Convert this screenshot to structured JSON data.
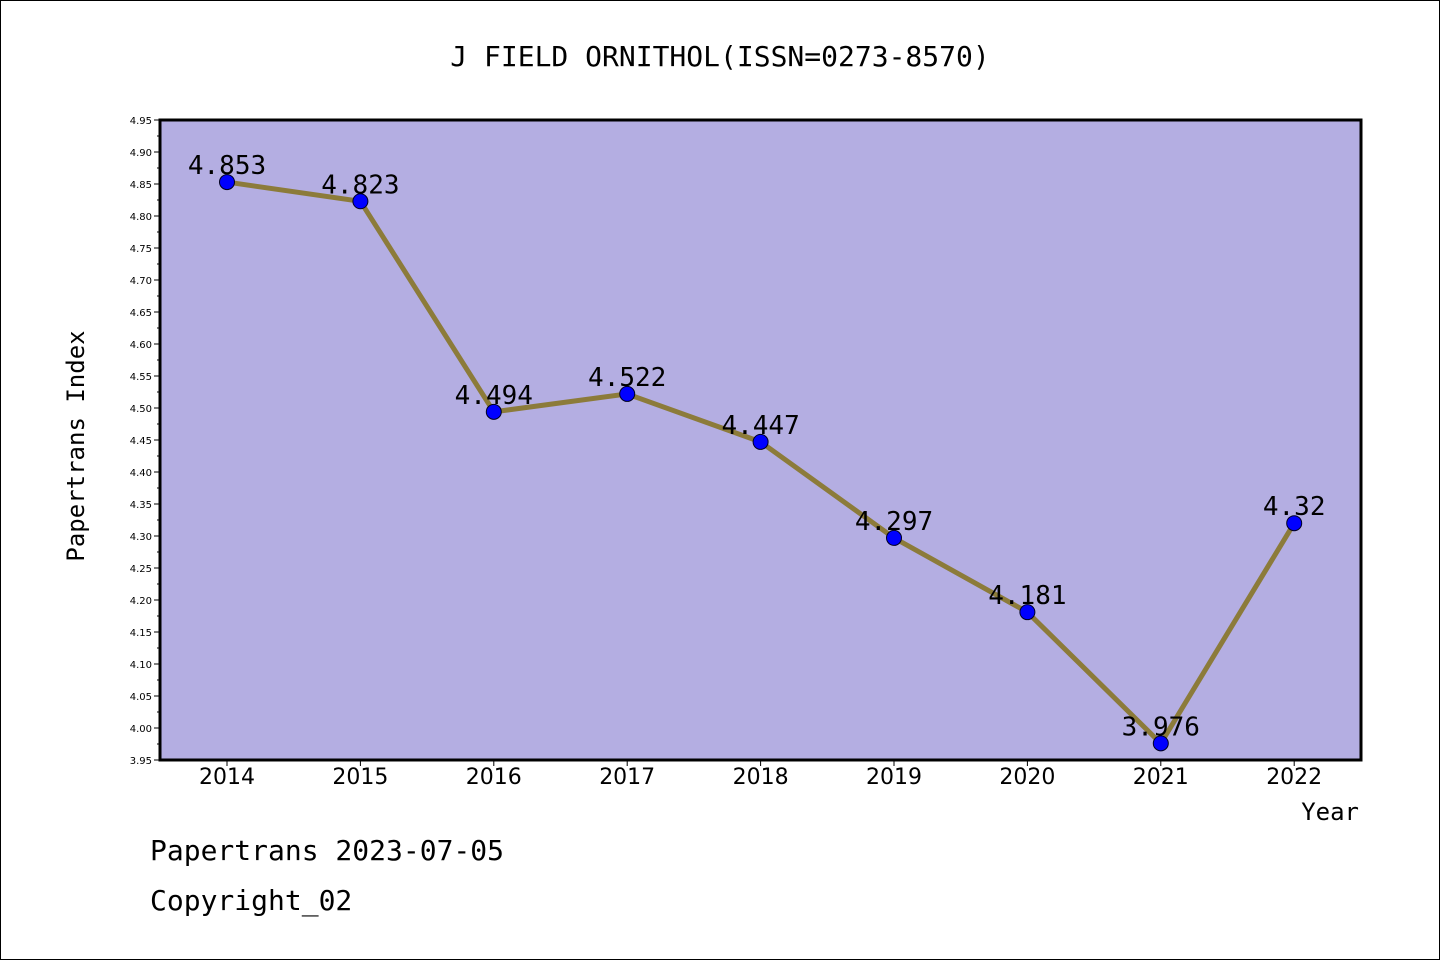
{
  "chart_data": {
    "type": "line",
    "title": "J FIELD ORNITHOL(ISSN=0273-8570)",
    "xlabel": "Year",
    "ylabel": "Papertrans Index",
    "categories": [
      "2014",
      "2015",
      "2016",
      "2017",
      "2018",
      "2019",
      "2020",
      "2021",
      "2022"
    ],
    "values": [
      4.853,
      4.823,
      4.494,
      4.522,
      4.447,
      4.297,
      4.181,
      3.976,
      4.32
    ],
    "data_labels": [
      "4.853",
      "4.823",
      "4.494",
      "4.522",
      "4.447",
      "4.297",
      "4.181",
      "3.976",
      "4.32"
    ],
    "ylim": [
      3.95,
      4.95
    ],
    "yticks": [
      "3.95",
      "4.00",
      "4.05",
      "4.10",
      "4.15",
      "4.20",
      "4.25",
      "4.30",
      "4.35",
      "4.40",
      "4.45",
      "4.50",
      "4.55",
      "4.60",
      "4.65",
      "4.70",
      "4.75",
      "4.80",
      "4.85",
      "4.90",
      "4.95"
    ],
    "grid": false,
    "colors": {
      "plot_background": "#b4aee2",
      "line": "#8c7b3a",
      "marker": "#0000ff"
    }
  },
  "footer": {
    "date_text": "Papertrans 2023-07-05",
    "copyright_text": "Copyright_02"
  }
}
